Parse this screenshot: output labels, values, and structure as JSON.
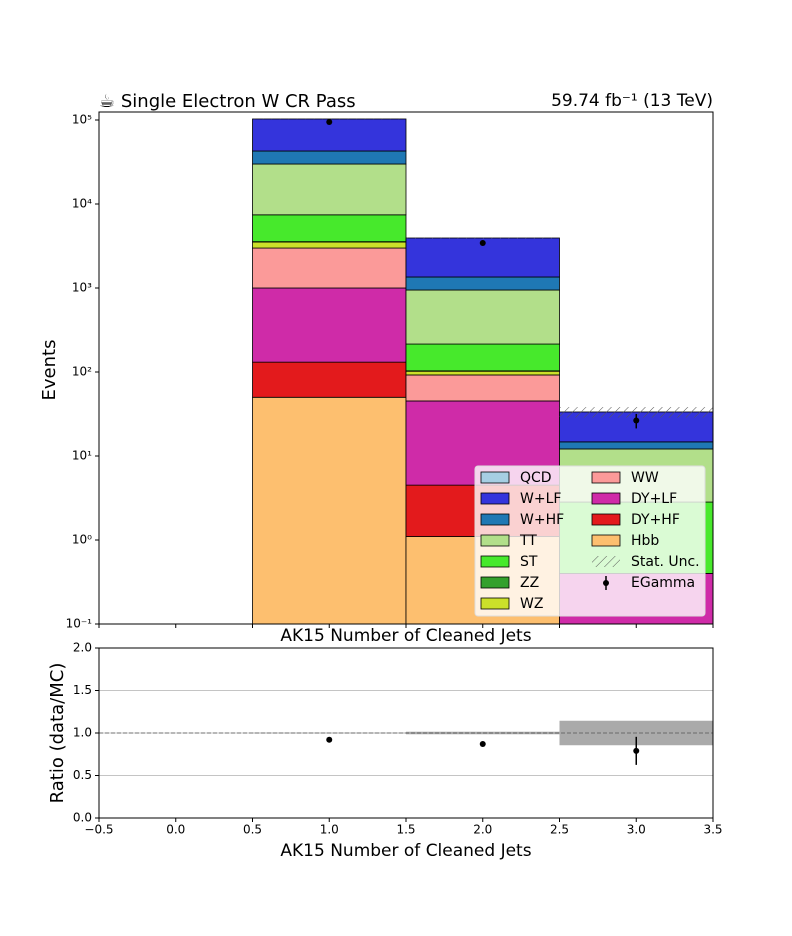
{
  "chart_data": [
    {
      "type": "stacked_histogram",
      "title": "☕ Single Electron W CR Pass",
      "subtitle": "59.74 fb⁻¹ (13 TeV)",
      "xlabel": "AK15 Number of Cleaned Jets",
      "ylabel": "Events",
      "xlim": [
        -0.5,
        3.5
      ],
      "ylim": [
        0.1,
        124500
      ],
      "log_y": true,
      "yticks": [
        {
          "value": 0.1,
          "label": "10⁻¹"
        },
        {
          "value": 1,
          "label": "10⁰"
        },
        {
          "value": 10,
          "label": "10¹"
        },
        {
          "value": 100,
          "label": "10²"
        },
        {
          "value": 1000,
          "label": "10³"
        },
        {
          "value": 10000,
          "label": "10⁴"
        },
        {
          "value": 100000,
          "label": "10⁵"
        }
      ],
      "bins": [
        0.5,
        1.5,
        2.5,
        3.5
      ],
      "series": [
        {
          "name": "QCD",
          "color": "#a6cee3",
          "values": [
            0,
            0,
            0
          ]
        },
        {
          "name": "W+LF",
          "color": "#3434dc",
          "values": [
            60100,
            2584,
            18.7
          ]
        },
        {
          "name": "W+HF",
          "color": "#1f78b4",
          "values": [
            12800,
            406,
            2.6
          ]
        },
        {
          "name": "TT",
          "color": "#b2df8a",
          "values": [
            22500,
            731,
            9.3
          ]
        },
        {
          "name": "ST",
          "color": "#47e92c",
          "values": [
            3870,
            112,
            2.43
          ]
        },
        {
          "name": "ZZ",
          "color": "#33a02c",
          "values": [
            30,
            1,
            0
          ]
        },
        {
          "name": "WZ",
          "color": "#cbe02a",
          "values": [
            540,
            10,
            0
          ]
        },
        {
          "name": "WW",
          "color": "#fb9a99",
          "values": [
            1990,
            47,
            0
          ]
        },
        {
          "name": "DY+LF",
          "color": "#cf2ba8",
          "values": [
            869,
            40.7,
            0.4
          ]
        },
        {
          "name": "DY+HF",
          "color": "#e31a1c",
          "values": [
            81,
            3.4,
            0
          ]
        },
        {
          "name": "Hbb",
          "color": "#fdbf6f",
          "values": [
            50,
            1.1,
            0
          ]
        }
      ],
      "uncertainty": {
        "name": "Stat. Unc.",
        "values": [
          500,
          60,
          4.8
        ]
      },
      "data": {
        "name": "EGamma",
        "color": "#000000",
        "values": [
          94600,
          3430,
          26.5
        ],
        "errors": [
          308,
          59,
          5.2
        ]
      },
      "legend": "lower right",
      "legend_columns": 2
    },
    {
      "type": "ratio",
      "xlabel": "AK15 Number of Cleaned Jets",
      "ylabel": "Ratio (data/MC)",
      "xlim": [
        -0.5,
        3.5
      ],
      "ylim": [
        0,
        2
      ],
      "xticks": [
        {
          "value": -0.5,
          "label": "−0.5"
        },
        {
          "value": 0,
          "label": "0.0"
        },
        0.5,
        {
          "value": 1,
          "label": "1.0"
        },
        1.5,
        {
          "value": 2,
          "label": "2.0"
        },
        2.5,
        {
          "value": 3,
          "label": "3.0"
        },
        3.5
      ],
      "yticks": [
        {
          "value": 0,
          "label": "0.0"
        },
        0.5,
        {
          "value": 1,
          "label": "1.0"
        },
        1.5,
        {
          "value": 2,
          "label": "2.0"
        }
      ],
      "grid": true,
      "reference": 1,
      "bins": [
        0.5,
        1.5,
        2.5,
        3.5
      ],
      "band": [
        0.005,
        0.015,
        0.144
      ],
      "band_color": "#aaaaaa",
      "x": [
        1,
        2,
        3
      ],
      "values": [
        0.92,
        0.87,
        0.79
      ],
      "errors": [
        0.003,
        0.02,
        0.165
      ],
      "color": "#000000"
    }
  ]
}
